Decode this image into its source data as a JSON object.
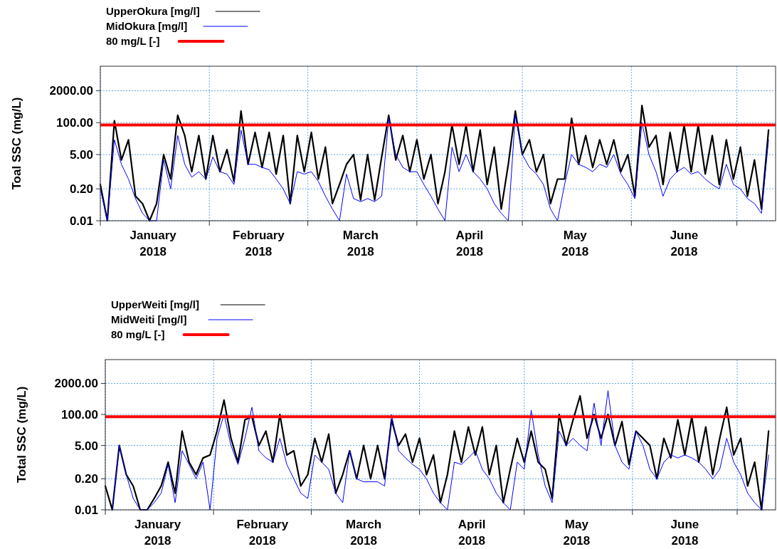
{
  "chart_data": [
    {
      "type": "line",
      "ylabel": "Toal SSC (mg/L)",
      "log": "y",
      "grid": true,
      "legend": "top left",
      "xlim": [
        "2018-01-01",
        "2018-07-12"
      ],
      "xticks": [
        {
          "value": "2018-01-01",
          "label": null
        },
        {
          "value": "2018-01-16",
          "label": "January 2018"
        },
        {
          "value": "2018-02-01",
          "label": null
        },
        {
          "value": "2018-02-15",
          "label": "February 2018"
        },
        {
          "value": "2018-03-01",
          "label": null
        },
        {
          "value": "2018-03-16",
          "label": "March 2018"
        },
        {
          "value": "2018-04-01",
          "label": null
        },
        {
          "value": "2018-04-16",
          "label": "April 2018"
        },
        {
          "value": "2018-05-01",
          "label": null
        },
        {
          "value": "2018-05-16",
          "label": "May 2018"
        },
        {
          "value": "2018-06-01",
          "label": null
        },
        {
          "value": "2018-06-16",
          "label": "June 2018"
        },
        {
          "value": "2018-07-01",
          "label": null
        }
      ],
      "ylim": [
        0.01,
        20000
      ],
      "yticks": [
        {
          "value": 0.01,
          "label": "0.01"
        },
        {
          "value": 0.2,
          "label": "0.20"
        },
        {
          "value": 5,
          "label": "5.00"
        },
        {
          "value": 100,
          "label": "100.00"
        },
        {
          "value": 2000,
          "label": "2000.00"
        }
      ],
      "ref_lines": [
        {
          "axis": "y",
          "value": 80,
          "label": "80 mg/L [-]",
          "color": "#ff0000"
        }
      ],
      "x": [
        "2018-01-01",
        "2018-01-03",
        "2018-01-05",
        "2018-01-07",
        "2018-01-09",
        "2018-01-11",
        "2018-01-13",
        "2018-01-15",
        "2018-01-17",
        "2018-01-19",
        "2018-01-21",
        "2018-01-23",
        "2018-01-25",
        "2018-01-27",
        "2018-01-29",
        "2018-01-31",
        "2018-02-02",
        "2018-02-04",
        "2018-02-06",
        "2018-02-08",
        "2018-02-10",
        "2018-02-12",
        "2018-02-14",
        "2018-02-16",
        "2018-02-18",
        "2018-02-20",
        "2018-02-22",
        "2018-02-24",
        "2018-02-26",
        "2018-02-28",
        "2018-03-02",
        "2018-03-04",
        "2018-03-06",
        "2018-03-08",
        "2018-03-10",
        "2018-03-12",
        "2018-03-14",
        "2018-03-16",
        "2018-03-18",
        "2018-03-20",
        "2018-03-22",
        "2018-03-24",
        "2018-03-26",
        "2018-03-28",
        "2018-03-30",
        "2018-04-01",
        "2018-04-03",
        "2018-04-05",
        "2018-04-07",
        "2018-04-09",
        "2018-04-11",
        "2018-04-13",
        "2018-04-15",
        "2018-04-17",
        "2018-04-19",
        "2018-04-21",
        "2018-04-23",
        "2018-04-25",
        "2018-04-27",
        "2018-04-29",
        "2018-05-01",
        "2018-05-03",
        "2018-05-05",
        "2018-05-07",
        "2018-05-09",
        "2018-05-11",
        "2018-05-13",
        "2018-05-15",
        "2018-05-17",
        "2018-05-19",
        "2018-05-21",
        "2018-05-23",
        "2018-05-25",
        "2018-05-27",
        "2018-05-29",
        "2018-05-31",
        "2018-06-02",
        "2018-06-04",
        "2018-06-06",
        "2018-06-08",
        "2018-06-10",
        "2018-06-12",
        "2018-06-14",
        "2018-06-16",
        "2018-06-18",
        "2018-06-20",
        "2018-06-22",
        "2018-06-24",
        "2018-06-26",
        "2018-06-28",
        "2018-06-30",
        "2018-07-02",
        "2018-07-04",
        "2018-07-06",
        "2018-07-08",
        "2018-07-10"
      ],
      "series": [
        {
          "name": "UpperOkura [mg/l]",
          "color": "#000000",
          "values": [
            0.3,
            0.01,
            120,
            3,
            20,
            0.1,
            0.05,
            0.01,
            0.05,
            5,
            0.5,
            200,
            30,
            1,
            30,
            0.5,
            30,
            1,
            8,
            0.4,
            300,
            2,
            40,
            1.5,
            40,
            0.8,
            30,
            0.05,
            30,
            1,
            40,
            0.5,
            10,
            0.05,
            0.3,
            2,
            5,
            0.07,
            5,
            0.07,
            4,
            200,
            3,
            30,
            1,
            20,
            0.5,
            5,
            0.05,
            1,
            80,
            2,
            80,
            1,
            50,
            0.3,
            10,
            0.03,
            2,
            300,
            5,
            20,
            1,
            5,
            0.05,
            0.5,
            0.5,
            150,
            2,
            30,
            1.5,
            20,
            2,
            20,
            1,
            5,
            0.1,
            500,
            10,
            30,
            0.3,
            40,
            1,
            80,
            1,
            80,
            0.8,
            30,
            0.3,
            20,
            0.5,
            10,
            0.1,
            3,
            0.03,
            50
          ]
        },
        {
          "name": "MidOkura [mg/l]",
          "color": "#0000ff",
          "values": [
            0.2,
            0.01,
            20,
            2,
            0.5,
            0.08,
            0.02,
            0.01,
            0.01,
            3,
            0.2,
            30,
            2,
            0.6,
            1,
            0.5,
            4,
            1,
            0.8,
            0.3,
            50,
            2,
            2,
            1.5,
            1.2,
            0.5,
            0.2,
            0.05,
            1,
            0.8,
            1,
            0.4,
            0.1,
            0.03,
            0.01,
            0.8,
            0.08,
            0.06,
            0.08,
            0.06,
            0.1,
            150,
            5,
            1.5,
            1,
            1,
            0.3,
            0.1,
            0.03,
            0.01,
            10,
            1,
            5,
            1,
            0.5,
            0.2,
            0.05,
            0.02,
            0.01,
            200,
            5,
            1.5,
            0.8,
            0.3,
            0.03,
            0.01,
            0.3,
            5,
            2,
            1.5,
            1,
            2,
            1.5,
            5,
            0.8,
            0.3,
            0.08,
            100,
            5,
            1,
            0.1,
            0.5,
            1,
            1.5,
            0.8,
            1,
            0.5,
            0.3,
            0.2,
            2,
            0.3,
            0.2,
            0.08,
            0.05,
            0.02,
            20
          ]
        }
      ]
    },
    {
      "type": "line",
      "ylabel": "Total SSC (mg/L)",
      "log": "y",
      "grid": true,
      "legend": "top left",
      "xlim": [
        "2018-01-01",
        "2018-07-12"
      ],
      "xticks": [
        {
          "value": "2018-01-01",
          "label": null
        },
        {
          "value": "2018-01-16",
          "label": "January 2018"
        },
        {
          "value": "2018-02-01",
          "label": null
        },
        {
          "value": "2018-02-15",
          "label": "February 2018"
        },
        {
          "value": "2018-03-01",
          "label": null
        },
        {
          "value": "2018-03-16",
          "label": "March 2018"
        },
        {
          "value": "2018-04-01",
          "label": null
        },
        {
          "value": "2018-04-16",
          "label": "April 2018"
        },
        {
          "value": "2018-05-01",
          "label": null
        },
        {
          "value": "2018-05-16",
          "label": "May 2018"
        },
        {
          "value": "2018-06-01",
          "label": null
        },
        {
          "value": "2018-06-16",
          "label": "June 2018"
        },
        {
          "value": "2018-07-01",
          "label": null
        }
      ],
      "ylim": [
        0.01,
        20000
      ],
      "yticks": [
        {
          "value": 0.01,
          "label": "0.01"
        },
        {
          "value": 0.2,
          "label": "0.20"
        },
        {
          "value": 5,
          "label": "5.00"
        },
        {
          "value": 100,
          "label": "100.00"
        },
        {
          "value": 2000,
          "label": "2000.00"
        }
      ],
      "ref_lines": [
        {
          "axis": "y",
          "value": 80,
          "label": "80 mg/L [-]",
          "color": "#ff0000"
        }
      ],
      "x": [
        "2018-01-01",
        "2018-01-03",
        "2018-01-05",
        "2018-01-07",
        "2018-01-09",
        "2018-01-11",
        "2018-01-13",
        "2018-01-15",
        "2018-01-17",
        "2018-01-19",
        "2018-01-21",
        "2018-01-23",
        "2018-01-25",
        "2018-01-27",
        "2018-01-29",
        "2018-01-31",
        "2018-02-02",
        "2018-02-04",
        "2018-02-06",
        "2018-02-08",
        "2018-02-10",
        "2018-02-12",
        "2018-02-14",
        "2018-02-16",
        "2018-02-18",
        "2018-02-20",
        "2018-02-22",
        "2018-02-24",
        "2018-02-26",
        "2018-02-28",
        "2018-03-02",
        "2018-03-04",
        "2018-03-06",
        "2018-03-08",
        "2018-03-10",
        "2018-03-12",
        "2018-03-14",
        "2018-03-16",
        "2018-03-18",
        "2018-03-20",
        "2018-03-22",
        "2018-03-24",
        "2018-03-26",
        "2018-03-28",
        "2018-03-30",
        "2018-04-01",
        "2018-04-03",
        "2018-04-05",
        "2018-04-07",
        "2018-04-09",
        "2018-04-11",
        "2018-04-13",
        "2018-04-15",
        "2018-04-17",
        "2018-04-19",
        "2018-04-21",
        "2018-04-23",
        "2018-04-25",
        "2018-04-27",
        "2018-04-29",
        "2018-05-01",
        "2018-05-03",
        "2018-05-05",
        "2018-05-07",
        "2018-05-09",
        "2018-05-11",
        "2018-05-13",
        "2018-05-15",
        "2018-05-17",
        "2018-05-19",
        "2018-05-21",
        "2018-05-23",
        "2018-05-25",
        "2018-05-27",
        "2018-05-29",
        "2018-05-31",
        "2018-06-02",
        "2018-06-04",
        "2018-06-06",
        "2018-06-08",
        "2018-06-10",
        "2018-06-12",
        "2018-06-14",
        "2018-06-16",
        "2018-06-18",
        "2018-06-20",
        "2018-06-22",
        "2018-06-24",
        "2018-06-26",
        "2018-06-28",
        "2018-06-30",
        "2018-07-02",
        "2018-07-04",
        "2018-07-06",
        "2018-07-08",
        "2018-07-10"
      ],
      "series": [
        {
          "name": "UpperWeiti [mg/l]",
          "color": "#000000",
          "values": [
            0.1,
            0.01,
            5,
            0.3,
            0.1,
            0.01,
            0.01,
            0.03,
            0.1,
            1,
            0.05,
            20,
            1,
            0.3,
            1.5,
            2,
            20,
            400,
            10,
            1,
            60,
            80,
            5,
            20,
            1,
            100,
            2,
            3,
            0.1,
            0.3,
            10,
            1,
            15,
            0.05,
            0.3,
            3,
            0.2,
            5,
            0.2,
            5,
            0.2,
            60,
            5,
            15,
            1,
            10,
            0.3,
            2,
            0.02,
            0.3,
            20,
            1,
            30,
            2,
            30,
            0.3,
            5,
            0.02,
            0.5,
            10,
            1,
            20,
            1,
            0.5,
            0.03,
            100,
            5,
            60,
            600,
            10,
            100,
            10,
            100,
            5,
            50,
            0.8,
            20,
            10,
            5,
            0.2,
            10,
            1.5,
            60,
            2,
            80,
            1,
            30,
            0.3,
            10,
            200,
            2,
            10,
            0.1,
            1,
            0.01,
            20
          ]
        },
        {
          "name": "MidWeiti [mg/l]",
          "color": "#0000ff",
          "values": [
            null,
            0.01,
            5,
            0.3,
            0.03,
            0.01,
            0.01,
            0.02,
            0.05,
            0.8,
            0.02,
            3,
            0.8,
            0.2,
            1,
            0.01,
            10,
            100,
            5,
            0.8,
            10,
            200,
            3,
            1.5,
            1,
            10,
            0.8,
            0.2,
            0.05,
            0.03,
            2,
            1,
            0.5,
            0.05,
            0.02,
            3,
            0.2,
            0.15,
            0.15,
            0.15,
            0.1,
            100,
            3,
            1.5,
            0.8,
            0.5,
            0.2,
            0.05,
            0.02,
            0.01,
            1,
            0.8,
            1.5,
            3,
            0.5,
            0.2,
            0.05,
            0.02,
            0.01,
            1,
            0.5,
            150,
            2,
            0.1,
            0.02,
            20,
            5,
            10,
            5,
            3,
            300,
            5,
            1000,
            5,
            1,
            0.5,
            20,
            5,
            0.5,
            0.2,
            1,
            2,
            1.5,
            2,
            1.5,
            1,
            0.5,
            0.2,
            0.5,
            10,
            1,
            0.3,
            0.05,
            0.02,
            0.01,
            2
          ]
        }
      ]
    }
  ]
}
